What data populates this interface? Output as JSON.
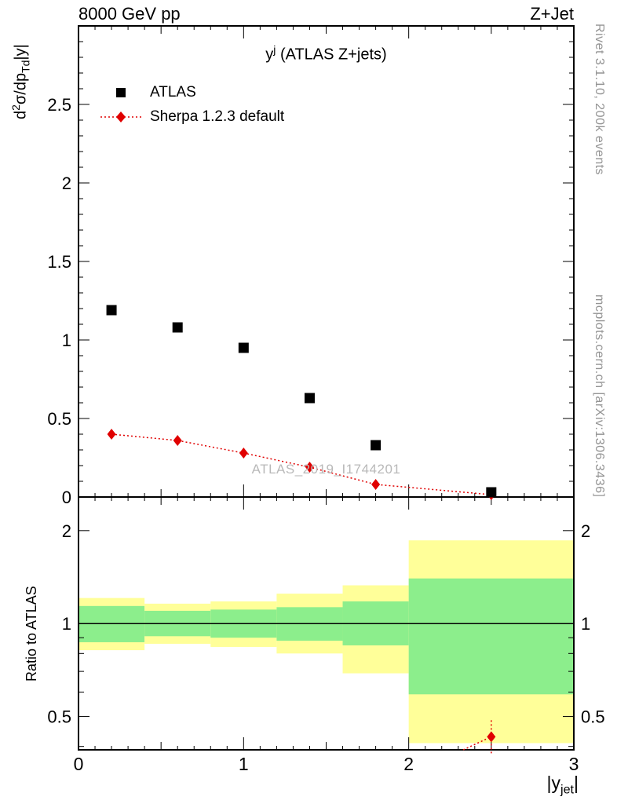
{
  "header": {
    "left": "8000 GeV pp",
    "right": "Z+Jet"
  },
  "title": {
    "base": "y",
    "sup": "j",
    "rest": " (ATLAS Z+jets)"
  },
  "legend": [
    {
      "label": "ATLAS"
    },
    {
      "label": "Sherpa 1.2.3 default"
    }
  ],
  "watermark": "ATLAS_2019_I1744201",
  "side_texts": {
    "top": "Rivet 3.1.10,  200k events",
    "bottom": "mcplots.cern.ch [arXiv:1306.3436]"
  },
  "axis_labels": {
    "main_y": {
      "pre": "d",
      "sup": "2",
      "mid": "σ/dp",
      "sub": "Td",
      "post": "|y|"
    },
    "ratio_y": "Ratio to ATLAS",
    "x": {
      "pre": "|y",
      "sub": "jet",
      "post": "|"
    }
  },
  "colors": {
    "red": "#e00000",
    "black": "#000000",
    "band_outer": "#ffff99",
    "band_inner": "#8cee8c",
    "gray": "#949494",
    "watermark": "#b9b9b9"
  },
  "chart_data": {
    "type": "scatter",
    "title": "y^j (ATLAS Z+jets)",
    "xlabel": "|y_jet|",
    "ylabel": "d^2σ/dp_Td|y|",
    "xlim": [
      0,
      3
    ],
    "x_ticks": {
      "labeled": [
        0,
        1,
        2,
        3
      ],
      "labels": [
        "0",
        "1",
        "2",
        "3"
      ],
      "minor_step": 0.1
    },
    "main_panel": {
      "ylim": [
        0,
        3.0
      ],
      "yticks": {
        "values": [
          0,
          0.5,
          1,
          1.5,
          2,
          2.5
        ],
        "labels": [
          "0",
          "0.5",
          "1",
          "1.5",
          "2",
          "2.5"
        ],
        "minor_step": 0.1
      },
      "series": [
        {
          "name": "ATLAS",
          "marker": "square",
          "color": "#000000",
          "line": "none",
          "x": [
            0.2,
            0.6,
            1.0,
            1.4,
            1.8,
            2.5
          ],
          "y": [
            1.19,
            1.08,
            0.95,
            0.63,
            0.33,
            0.03
          ]
        },
        {
          "name": "Sherpa 1.2.3 default",
          "marker": "diamond",
          "color": "#e00000",
          "line": "dotted",
          "x": [
            0.2,
            0.6,
            1.0,
            1.4,
            1.8,
            2.5
          ],
          "y": [
            0.4,
            0.36,
            0.28,
            0.19,
            0.08,
            0.015
          ]
        }
      ]
    },
    "ratio_panel": {
      "ylabel": "Ratio to ATLAS",
      "scale": "log",
      "ylim": [
        0.39,
        2.57
      ],
      "yticks": {
        "labeled": [
          0.5,
          1,
          2
        ],
        "labels": [
          "0.5",
          "1",
          "2"
        ],
        "minor": [
          0.4,
          0.6,
          0.7,
          0.8,
          0.9
        ]
      },
      "reference_line": 1,
      "bands": [
        {
          "x0": 0.0,
          "x1": 0.4,
          "outer": [
            0.82,
            1.21
          ],
          "inner": [
            0.87,
            1.14
          ]
        },
        {
          "x0": 0.4,
          "x1": 0.8,
          "outer": [
            0.86,
            1.16
          ],
          "inner": [
            0.91,
            1.1
          ]
        },
        {
          "x0": 0.8,
          "x1": 1.2,
          "outer": [
            0.84,
            1.18
          ],
          "inner": [
            0.9,
            1.11
          ]
        },
        {
          "x0": 1.2,
          "x1": 1.6,
          "outer": [
            0.8,
            1.25
          ],
          "inner": [
            0.88,
            1.13
          ]
        },
        {
          "x0": 1.6,
          "x1": 2.0,
          "outer": [
            0.69,
            1.33
          ],
          "inner": [
            0.85,
            1.18
          ]
        },
        {
          "x0": 2.0,
          "x1": 3.0,
          "outer": [
            0.41,
            1.86
          ],
          "inner": [
            0.59,
            1.4
          ]
        }
      ],
      "mc_points": [
        {
          "x": 2.5,
          "y": 0.43,
          "ylo": 0.38,
          "yhi": 0.49
        }
      ],
      "mc_line": {
        "x": [
          2.33,
          2.5
        ],
        "y": [
          0.39,
          0.43
        ]
      }
    }
  }
}
